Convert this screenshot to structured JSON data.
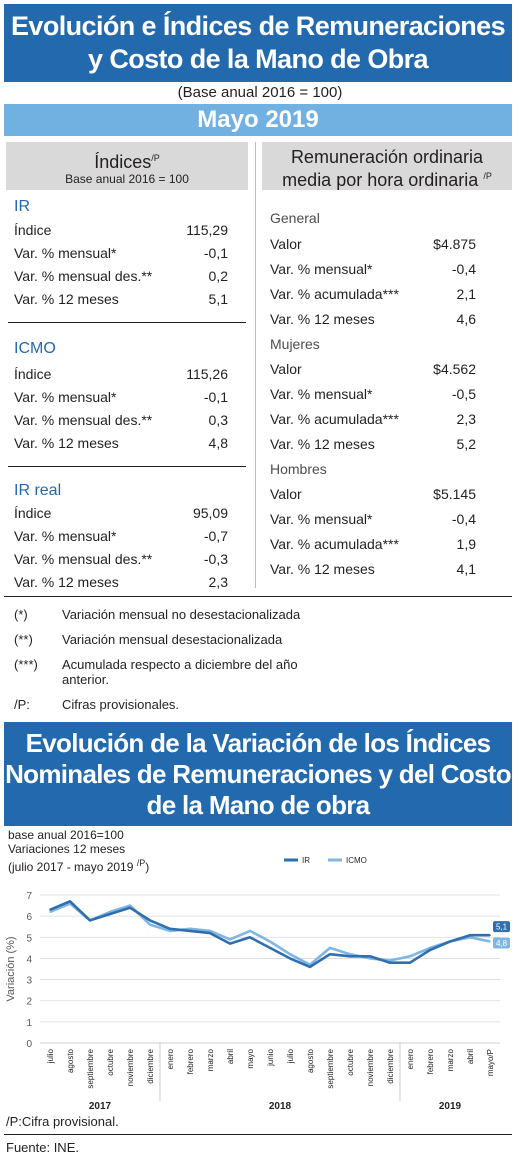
{
  "header": {
    "title_line1": "Evolución e Índices de Remuneraciones",
    "title_line2": "y Costo de la Mano de Obra",
    "base": "(Base anual 2016 = 100)",
    "month": "Mayo 2019"
  },
  "left_panel": {
    "title": "Índices",
    "title_sup": "/P",
    "subtitle": "Base anual 2016 = 100",
    "sections": [
      {
        "name": "IR",
        "rows": [
          {
            "label": "Índice",
            "value": "115,29"
          },
          {
            "label": "Var. % mensual*",
            "value": "-0,1"
          },
          {
            "label": "Var. % mensual des.**",
            "value": "0,2"
          },
          {
            "label": "Var. % 12 meses",
            "value": "5,1"
          }
        ]
      },
      {
        "name": "ICMO",
        "rows": [
          {
            "label": "Índice",
            "value": "115,26"
          },
          {
            "label": "Var. % mensual*",
            "value": "-0,1"
          },
          {
            "label": "Var. % mensual des.**",
            "value": "0,3"
          },
          {
            "label": "Var. % 12 meses",
            "value": "4,8"
          }
        ]
      },
      {
        "name": "IR real",
        "rows": [
          {
            "label": "Índice",
            "value": "95,09"
          },
          {
            "label": "Var. % mensual*",
            "value": "-0,7"
          },
          {
            "label": "Var. % mensual des.**",
            "value": "-0,3"
          },
          {
            "label": "Var. % 12 meses",
            "value": "2,3"
          }
        ]
      }
    ]
  },
  "right_panel": {
    "title_line1": "Remuneración ordinaria",
    "title_line2": "media por hora ordinaria",
    "title_sup": "/P",
    "groups": [
      {
        "name": "General",
        "rows": [
          {
            "label": "Valor",
            "value": "$4.875"
          },
          {
            "label": "Var. % mensual*",
            "value": "-0,4"
          },
          {
            "label": "Var. % acumulada***",
            "value": "2,1"
          },
          {
            "label": "Var. % 12 meses",
            "value": "4,6"
          }
        ]
      },
      {
        "name": "Mujeres",
        "rows": [
          {
            "label": "Valor",
            "value": "$4.562"
          },
          {
            "label": "Var. % mensual*",
            "value": "-0,5"
          },
          {
            "label": "Var. % acumulada***",
            "value": "2,3"
          },
          {
            "label": "Var. % 12 meses",
            "value": "5,2"
          }
        ]
      },
      {
        "name": "Hombres",
        "rows": [
          {
            "label": "Valor",
            "value": "$5.145"
          },
          {
            "label": "Var. % mensual*",
            "value": "-0,4"
          },
          {
            "label": "Var. % acumulada***",
            "value": "1,9"
          },
          {
            "label": "Var. % 12 meses",
            "value": "4,1"
          }
        ]
      }
    ]
  },
  "notes": [
    {
      "mark": "(*)",
      "text": "Variación mensual no desestacionalizada"
    },
    {
      "mark": "(**)",
      "text": "Variación mensual desestacionalizada"
    },
    {
      "mark": "(***)",
      "text": "Acumulada respecto a diciembre del año anterior."
    },
    {
      "mark": "/P:",
      "text": "Cifras provisionales."
    }
  ],
  "chart_section": {
    "title_line1": "Evolución de la Variación de los Índices",
    "title_line2": "Nominales de Remuneraciones y del Costo",
    "title_line3": "de la Mano de obra",
    "sub1": "base anual 2016=100",
    "sub2": "Variaciones 12 meses",
    "sub3": "(julio 2017 - mayo 2019",
    "sub3_sup": "/P",
    "sub3_end": ")",
    "footnote": "/P:Cifra provisional.",
    "source": "Fuente: INE."
  },
  "chart_data": {
    "type": "line",
    "ylabel": "Variación (%)",
    "ylim": [
      0,
      7
    ],
    "yticks": [
      0,
      1,
      2,
      3,
      4,
      5,
      6,
      7
    ],
    "grid": true,
    "legend_position": "top",
    "categories": [
      "julio",
      "agosto",
      "septiembre",
      "octubre",
      "noviembre",
      "diciembre",
      "enero",
      "febrero",
      "marzo",
      "abril",
      "mayo",
      "junio",
      "julio",
      "agosto",
      "septiembre",
      "octubre",
      "noviembre",
      "diciembre",
      "enero",
      "febrero",
      "marzo",
      "abril",
      "mayo/P"
    ],
    "year_labels": [
      {
        "label": "2017",
        "from": 0,
        "to": 5
      },
      {
        "label": "2018",
        "from": 6,
        "to": 17
      },
      {
        "label": "2019",
        "from": 18,
        "to": 22
      }
    ],
    "series": [
      {
        "name": "IR",
        "color": "#2f6fad",
        "end_label": "5,1",
        "values": [
          6.3,
          6.7,
          5.8,
          6.1,
          6.4,
          5.8,
          5.4,
          5.3,
          5.2,
          4.7,
          5.0,
          4.5,
          4.0,
          3.6,
          4.2,
          4.1,
          4.1,
          3.8,
          3.8,
          4.4,
          4.8,
          5.1,
          5.1
        ]
      },
      {
        "name": "ICMO",
        "color": "#7fb6e3",
        "end_label": "4,8",
        "values": [
          6.2,
          6.6,
          5.8,
          6.2,
          6.5,
          5.6,
          5.3,
          5.4,
          5.3,
          4.9,
          5.3,
          4.8,
          4.2,
          3.7,
          4.5,
          4.2,
          4.0,
          3.9,
          4.1,
          4.5,
          4.8,
          5.0,
          4.8
        ]
      }
    ]
  }
}
